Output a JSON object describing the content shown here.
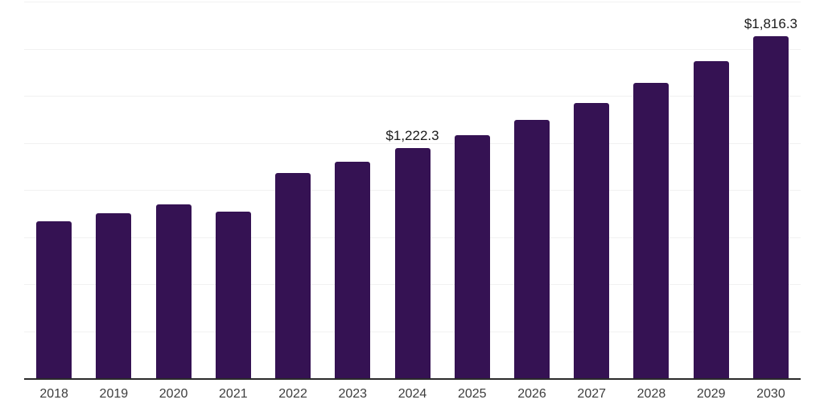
{
  "chart_data": {
    "type": "bar",
    "title": "",
    "xlabel": "",
    "ylabel": "",
    "categories": [
      "2018",
      "2019",
      "2020",
      "2021",
      "2022",
      "2023",
      "2024",
      "2025",
      "2026",
      "2027",
      "2028",
      "2029",
      "2030"
    ],
    "values": [
      833,
      876,
      923,
      886,
      1090,
      1149,
      1222.3,
      1290,
      1372,
      1461,
      1568,
      1684,
      1816.3
    ],
    "point_labels": {
      "2024": "$1,222.3",
      "2030": "$1,816.3"
    },
    "ylim": [
      0,
      2000
    ],
    "gridline_interval": 250,
    "grid": true,
    "legend": "none",
    "colors": {
      "bar": "#351253",
      "grid": "#f1f1f1",
      "axis": "#2b2b2b",
      "value_label": "#1a1a1a",
      "tick_label": "#3d3d3d",
      "background": "#ffffff"
    }
  }
}
